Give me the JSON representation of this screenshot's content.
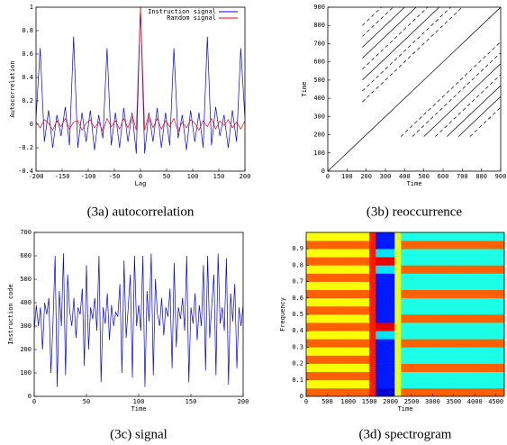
{
  "chart_data": [
    {
      "type": "line",
      "caption": "(3a) autocorrelation",
      "xlabel": "Lag",
      "ylabel": "Autocorrelation",
      "xlim": [
        -200,
        200
      ],
      "ylim": [
        -0.4,
        1
      ],
      "xticks": [
        -200,
        -150,
        -100,
        -50,
        0,
        50,
        100,
        150,
        200
      ],
      "yticks": [
        -0.4,
        -0.2,
        0,
        0.2,
        0.4,
        0.6,
        0.8,
        1
      ],
      "legend": "top-right",
      "x": [
        -200,
        -192,
        -184,
        -176,
        -168,
        -160,
        -152,
        -144,
        -136,
        -128,
        -120,
        -112,
        -104,
        -96,
        -88,
        -80,
        -72,
        -64,
        -56,
        -48,
        -40,
        -32,
        -24,
        -16,
        -8,
        0,
        8,
        16,
        24,
        32,
        40,
        48,
        56,
        64,
        72,
        80,
        88,
        96,
        104,
        112,
        120,
        128,
        136,
        144,
        152,
        160,
        168,
        176,
        184,
        192,
        200
      ],
      "series": [
        {
          "name": "Instruction signal",
          "color": "#0000ff",
          "values": [
            0.05,
            0.65,
            -0.15,
            0.12,
            -0.2,
            0.08,
            -0.1,
            0.15,
            -0.18,
            0.75,
            -0.2,
            0.1,
            -0.15,
            0.12,
            -0.22,
            0.08,
            -0.12,
            0.65,
            -0.18,
            0.1,
            -0.2,
            0.14,
            -0.15,
            0.1,
            -0.25,
            1,
            -0.25,
            0.1,
            -0.15,
            0.14,
            -0.2,
            0.1,
            -0.18,
            0.65,
            -0.12,
            0.08,
            -0.22,
            0.12,
            -0.15,
            0.1,
            -0.2,
            0.75,
            -0.18,
            0.15,
            -0.1,
            0.08,
            -0.2,
            0.12,
            -0.15,
            0.65,
            0.05
          ]
        },
        {
          "name": "Random signal",
          "color": "#ff0000",
          "values": [
            0.02,
            -0.03,
            0.04,
            0.01,
            -0.05,
            0.03,
            -0.02,
            0.05,
            -0.04,
            0.02,
            0.03,
            -0.05,
            0.01,
            0.04,
            -0.03,
            0.02,
            -0.06,
            0.05,
            -0.02,
            0.03,
            -0.04,
            0.05,
            -0.03,
            0.08,
            -0.05,
            1,
            -0.05,
            0.08,
            -0.03,
            0.05,
            -0.04,
            0.03,
            -0.02,
            0.05,
            -0.06,
            0.02,
            -0.03,
            0.04,
            0.01,
            -0.05,
            0.03,
            -0.02,
            0.05,
            -0.04,
            0.03,
            -0.01,
            0.04,
            -0.03,
            0.02,
            -0.04,
            0.03
          ]
        }
      ]
    },
    {
      "type": "segments",
      "caption": "(3b) reoccurrence",
      "xlabel": "Time",
      "ylabel": "Time",
      "xlim": [
        0,
        900
      ],
      "ylim": [
        0,
        900
      ],
      "xticks": [
        0,
        100,
        200,
        300,
        400,
        500,
        600,
        700,
        800,
        900
      ],
      "yticks": [
        0,
        100,
        200,
        300,
        400,
        500,
        600,
        700,
        800,
        900
      ],
      "color": "#000000",
      "series": [
        {
          "x": [
            0,
            900
          ],
          "values": [
            0,
            900
          ],
          "dash": false
        },
        {
          "x": [
            180,
            700
          ],
          "values": [
            380,
            900
          ],
          "dash": true
        },
        {
          "x": [
            180,
            640
          ],
          "values": [
            440,
            900
          ],
          "dash": true
        },
        {
          "x": [
            180,
            580
          ],
          "values": [
            500,
            900
          ],
          "dash": false
        },
        {
          "x": [
            180,
            520
          ],
          "values": [
            560,
            900
          ],
          "dash": true
        },
        {
          "x": [
            180,
            460
          ],
          "values": [
            620,
            900
          ],
          "dash": false
        },
        {
          "x": [
            180,
            400
          ],
          "values": [
            680,
            900
          ],
          "dash": false
        },
        {
          "x": [
            180,
            340
          ],
          "values": [
            740,
            900
          ],
          "dash": true
        },
        {
          "x": [
            180,
            280
          ],
          "values": [
            800,
            900
          ],
          "dash": true
        },
        {
          "x": [
            380,
            900
          ],
          "values": [
            190,
            710
          ],
          "dash": true
        },
        {
          "x": [
            440,
            900
          ],
          "values": [
            190,
            650
          ],
          "dash": true
        },
        {
          "x": [
            500,
            900
          ],
          "values": [
            190,
            590
          ],
          "dash": false
        },
        {
          "x": [
            560,
            900
          ],
          "values": [
            190,
            530
          ],
          "dash": true
        },
        {
          "x": [
            620,
            900
          ],
          "values": [
            190,
            470
          ],
          "dash": false
        },
        {
          "x": [
            680,
            900
          ],
          "values": [
            190,
            410
          ],
          "dash": false
        },
        {
          "x": [
            740,
            900
          ],
          "values": [
            190,
            350
          ],
          "dash": true
        }
      ]
    },
    {
      "type": "line",
      "caption": "(3c) signal",
      "xlabel": "Time",
      "ylabel": "Instruction code",
      "xlim": [
        0,
        200
      ],
      "ylim": [
        0,
        700
      ],
      "xticks": [
        0,
        50,
        100,
        150,
        200
      ],
      "yticks": [
        0,
        100,
        200,
        300,
        400,
        500,
        600,
        700
      ],
      "x": [
        0,
        2,
        4,
        6,
        8,
        10,
        12,
        14,
        16,
        18,
        20,
        22,
        24,
        26,
        28,
        30,
        32,
        34,
        36,
        38,
        40,
        42,
        44,
        46,
        48,
        50,
        52,
        54,
        56,
        58,
        60,
        62,
        64,
        66,
        68,
        70,
        72,
        74,
        76,
        78,
        80,
        82,
        84,
        86,
        88,
        90,
        92,
        94,
        96,
        98,
        100,
        102,
        104,
        106,
        108,
        110,
        112,
        114,
        116,
        118,
        120,
        122,
        124,
        126,
        128,
        130,
        132,
        134,
        136,
        138,
        140,
        142,
        144,
        146,
        148,
        150,
        152,
        154,
        156,
        158,
        160,
        162,
        164,
        166,
        168,
        170,
        172,
        174,
        176,
        178,
        180,
        182,
        184,
        186,
        188,
        190,
        192,
        194,
        196,
        198,
        200
      ],
      "series": [
        {
          "color": "#0000ff",
          "values": [
            280,
            390,
            300,
            380,
            200,
            400,
            350,
            420,
            100,
            320,
            600,
            40,
            450,
            300,
            610,
            90,
            520,
            360,
            300,
            420,
            250,
            380,
            350,
            460,
            130,
            560,
            200,
            380,
            330,
            420,
            280,
            600,
            60,
            380,
            310,
            440,
            240,
            390,
            300,
            360,
            340,
            480,
            100,
            580,
            250,
            380,
            520,
            80,
            600,
            300,
            390,
            280,
            600,
            40,
            450,
            320,
            610,
            90,
            500,
            350,
            300,
            420,
            260,
            380,
            340,
            460,
            120,
            570,
            210,
            380,
            330,
            420,
            280,
            600,
            60,
            380,
            310,
            440,
            240,
            390,
            300,
            560,
            110,
            600,
            250,
            390,
            520,
            90,
            610,
            310,
            380,
            280,
            590,
            50,
            440,
            320,
            480,
            120,
            380,
            300,
            390
          ]
        }
      ]
    },
    {
      "type": "heatmap",
      "caption": "(3d) spectrogram",
      "xlabel": "Time",
      "ylabel": "Frequency",
      "xlim": [
        0,
        4700
      ],
      "ylim": [
        0,
        1
      ],
      "xticks": [
        0,
        500,
        1000,
        1500,
        2000,
        2500,
        3000,
        3500,
        4000,
        4500
      ],
      "yticks": [
        0,
        0.1,
        0.2,
        0.3,
        0.4,
        0.5,
        0.6,
        0.7,
        0.8,
        0.9
      ],
      "colormap": "jet",
      "xbins": [
        0,
        500,
        1000,
        1500,
        1650,
        1900,
        2100,
        2250,
        3000,
        3800,
        4700
      ],
      "ybins": [
        0,
        0.05,
        0.1,
        0.15,
        0.2,
        0.25,
        0.3,
        0.35,
        0.4,
        0.45,
        0.5,
        0.55,
        0.6,
        0.65,
        0.7,
        0.75,
        0.8,
        0.85,
        0.9,
        0.95,
        1
      ],
      "z": [
        [
          0.78,
          0.78,
          0.78,
          0.85,
          0.08,
          0.08,
          0.6,
          0.78,
          0.78,
          0.78
        ],
        [
          0.62,
          0.62,
          0.62,
          0.85,
          0.15,
          0.15,
          0.6,
          0.4,
          0.4,
          0.4
        ],
        [
          0.78,
          0.78,
          0.78,
          0.85,
          0.15,
          0.15,
          0.6,
          0.4,
          0.4,
          0.4
        ],
        [
          0.62,
          0.62,
          0.62,
          0.85,
          0.15,
          0.15,
          0.6,
          0.78,
          0.78,
          0.78
        ],
        [
          0.78,
          0.78,
          0.78,
          0.85,
          0.15,
          0.15,
          0.6,
          0.4,
          0.4,
          0.4
        ],
        [
          0.62,
          0.62,
          0.62,
          0.85,
          0.15,
          0.15,
          0.6,
          0.4,
          0.4,
          0.4
        ],
        [
          0.78,
          0.78,
          0.78,
          0.85,
          0.15,
          0.15,
          0.6,
          0.78,
          0.78,
          0.78
        ],
        [
          0.62,
          0.62,
          0.62,
          0.85,
          0.35,
          0.35,
          0.6,
          0.4,
          0.4,
          0.4
        ],
        [
          0.78,
          0.78,
          0.78,
          0.85,
          0.9,
          0.9,
          0.6,
          0.4,
          0.4,
          0.4
        ],
        [
          0.62,
          0.62,
          0.62,
          0.85,
          0.15,
          0.15,
          0.6,
          0.78,
          0.78,
          0.78
        ],
        [
          0.78,
          0.78,
          0.78,
          0.85,
          0.15,
          0.15,
          0.6,
          0.4,
          0.4,
          0.4
        ],
        [
          0.62,
          0.62,
          0.62,
          0.85,
          0.15,
          0.15,
          0.6,
          0.4,
          0.4,
          0.4
        ],
        [
          0.78,
          0.78,
          0.78,
          0.85,
          0.15,
          0.15,
          0.6,
          0.78,
          0.78,
          0.78
        ],
        [
          0.62,
          0.62,
          0.62,
          0.85,
          0.15,
          0.15,
          0.6,
          0.4,
          0.4,
          0.4
        ],
        [
          0.78,
          0.78,
          0.78,
          0.85,
          0.15,
          0.15,
          0.6,
          0.4,
          0.4,
          0.4
        ],
        [
          0.62,
          0.62,
          0.62,
          0.85,
          0.35,
          0.35,
          0.6,
          0.78,
          0.78,
          0.78
        ],
        [
          0.78,
          0.78,
          0.78,
          0.85,
          0.9,
          0.9,
          0.6,
          0.4,
          0.4,
          0.4
        ],
        [
          0.62,
          0.62,
          0.62,
          0.85,
          0.35,
          0.35,
          0.6,
          0.4,
          0.4,
          0.4
        ],
        [
          0.78,
          0.78,
          0.78,
          0.85,
          0.15,
          0.15,
          0.6,
          0.78,
          0.78,
          0.78
        ],
        [
          0.62,
          0.62,
          0.62,
          0.85,
          0.15,
          0.15,
          0.6,
          0.4,
          0.4,
          0.4
        ]
      ]
    }
  ]
}
